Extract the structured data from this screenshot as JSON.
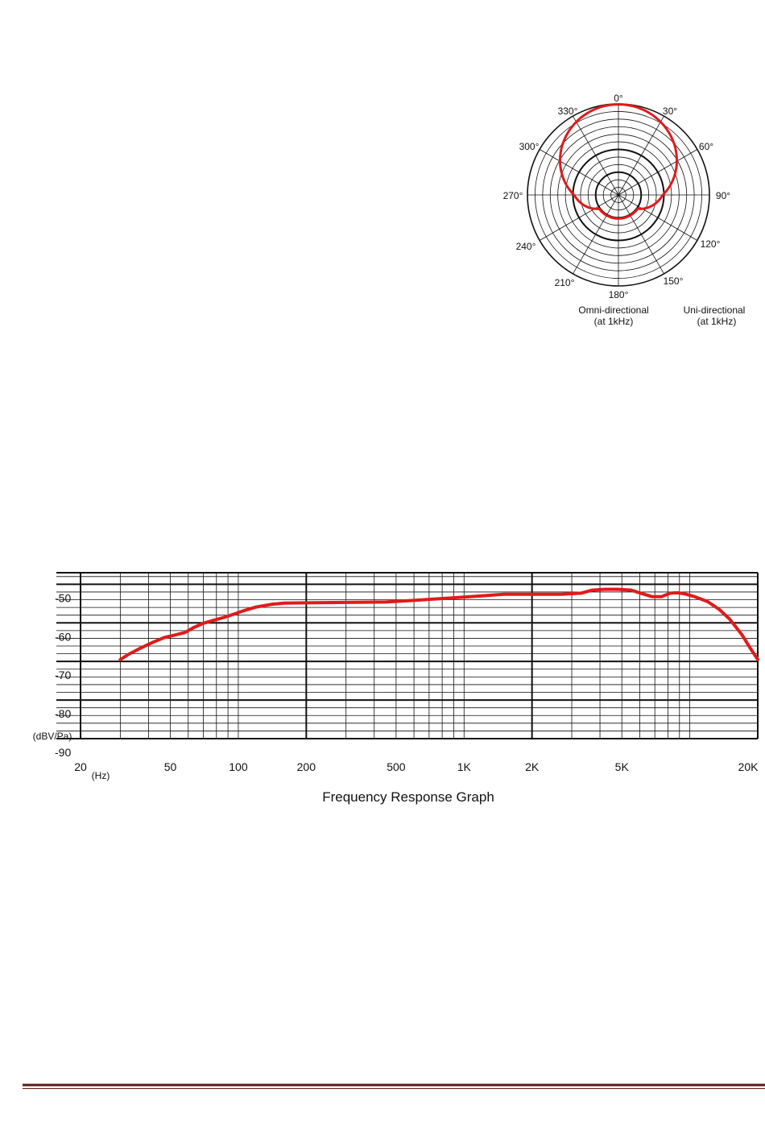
{
  "polar": {
    "angle_labels": [
      "0°",
      "30°",
      "60°",
      "90°",
      "120°",
      "150°",
      "180°",
      "210°",
      "240°",
      "270°",
      "300°",
      "330°"
    ],
    "legend_left": [
      "Omni-directional",
      "(at 1kHz)"
    ],
    "legend_right": [
      "Uni-directional",
      "(at 1kHz)"
    ],
    "pattern_color": "#e01b1b"
  },
  "chart_data": {
    "type": "line",
    "title": "Frequency Response Graph",
    "xlabel_unit": "(Hz)",
    "ylabel_unit": "(dBV/Pa)",
    "x_scale": "log",
    "xlim": [
      20,
      20000
    ],
    "ylim": [
      -90,
      -47
    ],
    "grid": true,
    "x_tick_labels": [
      {
        "value": 20,
        "label": "20"
      },
      {
        "value": 50,
        "label": "50"
      },
      {
        "value": 100,
        "label": "100"
      },
      {
        "value": 200,
        "label": "200"
      },
      {
        "value": 500,
        "label": "500"
      },
      {
        "value": 1000,
        "label": "1K"
      },
      {
        "value": 2000,
        "label": "2K"
      },
      {
        "value": 5000,
        "label": "5K"
      },
      {
        "value": 20000,
        "label": "20K"
      }
    ],
    "y_tick_labels": [
      {
        "value": -50,
        "label": "-50"
      },
      {
        "value": -60,
        "label": "-60"
      },
      {
        "value": -70,
        "label": "-70"
      },
      {
        "value": -80,
        "label": "-80"
      },
      {
        "value": -90,
        "label": "-90"
      }
    ],
    "series": [
      {
        "color": "#e01b1b",
        "x": [
          30,
          33,
          37,
          42,
          47,
          52,
          58,
          63,
          70,
          78,
          85,
          95,
          105,
          120,
          140,
          160,
          200,
          300,
          450,
          550,
          700,
          900,
          1200,
          1500,
          2000,
          2700,
          3300,
          3700,
          4200,
          4800,
          5500,
          6200,
          6800,
          7500,
          8200,
          8800,
          9500,
          10500,
          12000,
          13500,
          15000,
          17000,
          18500,
          20000
        ],
        "y": [
          -69.5,
          -68,
          -66.5,
          -65,
          -63.8,
          -63.2,
          -62.5,
          -61.3,
          -60.1,
          -59.3,
          -58.7,
          -57.8,
          -56.9,
          -55.9,
          -55.2,
          -54.9,
          -54.8,
          -54.7,
          -54.6,
          -54.3,
          -53.9,
          -53.5,
          -53,
          -52.6,
          -52.6,
          -52.6,
          -52.3,
          -51.5,
          -51.3,
          -51.3,
          -51.5,
          -52.5,
          -53.2,
          -53.2,
          -52.3,
          -52.2,
          -52.5,
          -53.2,
          -54.5,
          -56.5,
          -59,
          -63,
          -66.5,
          -69.5
        ]
      }
    ]
  }
}
